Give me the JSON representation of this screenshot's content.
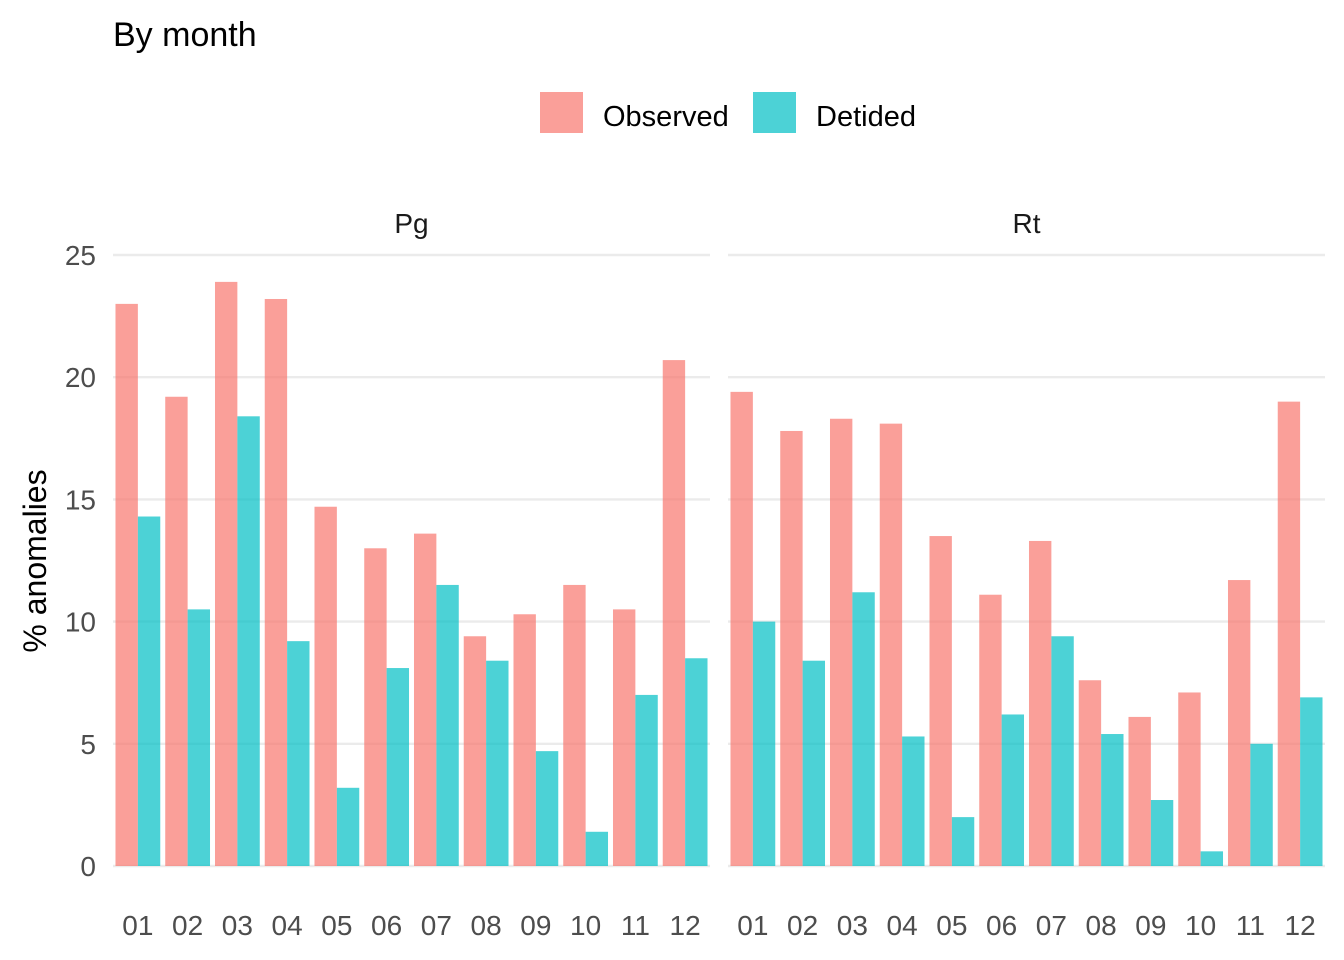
{
  "chart_data": {
    "type": "bar",
    "title": "By month",
    "xlabel": "",
    "ylabel": "% anomalies",
    "ylim": [
      0,
      25
    ],
    "yticks": [
      0,
      5,
      10,
      15,
      20,
      25
    ],
    "categories": [
      "01",
      "02",
      "03",
      "04",
      "05",
      "06",
      "07",
      "08",
      "09",
      "10",
      "11",
      "12"
    ],
    "legend": {
      "position": "top",
      "entries": [
        "Observed",
        "Detided"
      ]
    },
    "colors": {
      "Observed": "#F8766D",
      "Detided": "#00BFC4"
    },
    "grid": true,
    "panels": [
      {
        "label": "Pg",
        "series": [
          {
            "name": "Observed",
            "values": [
              23.0,
              19.2,
              23.9,
              23.2,
              14.7,
              13.0,
              13.6,
              9.4,
              10.3,
              11.5,
              10.5,
              20.7
            ]
          },
          {
            "name": "Detided",
            "values": [
              14.3,
              10.5,
              18.4,
              9.2,
              3.2,
              8.1,
              11.5,
              8.4,
              4.7,
              1.4,
              7.0,
              8.5
            ]
          }
        ]
      },
      {
        "label": "Rt",
        "series": [
          {
            "name": "Observed",
            "values": [
              19.4,
              17.8,
              18.3,
              18.1,
              13.5,
              11.1,
              13.3,
              7.6,
              6.1,
              7.1,
              11.7,
              19.0
            ]
          },
          {
            "name": "Detided",
            "values": [
              10.0,
              8.4,
              11.2,
              5.3,
              2.0,
              6.2,
              9.4,
              5.4,
              2.7,
              0.6,
              5.0,
              6.9
            ]
          }
        ]
      }
    ]
  }
}
